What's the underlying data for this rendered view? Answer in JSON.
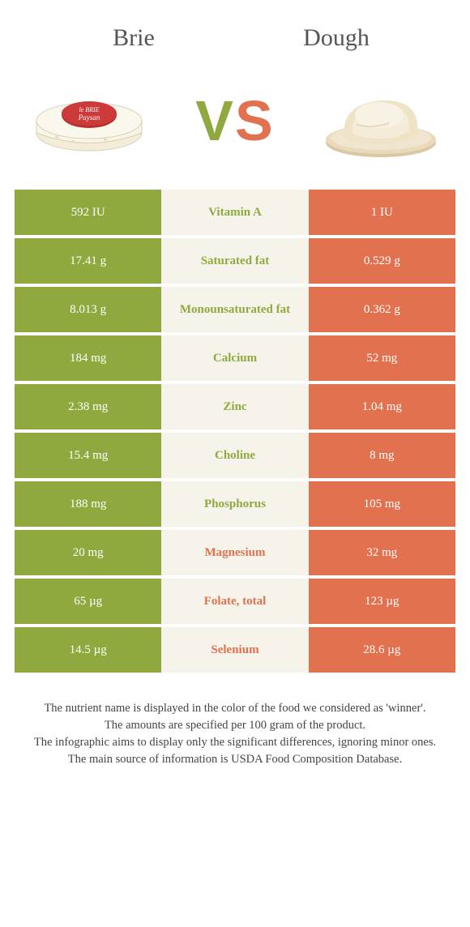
{
  "colors": {
    "left": "#8fa93e",
    "right": "#e2724f",
    "mid_bg": "#f6f3ea",
    "text": "#555"
  },
  "header": {
    "left_title": "Brie",
    "right_title": "Dough",
    "vs_v": "V",
    "vs_s": "S"
  },
  "table": {
    "rows": [
      {
        "left": "592 IU",
        "label": "Vitamin A",
        "right": "1 IU",
        "winner": "left"
      },
      {
        "left": "17.41 g",
        "label": "Saturated fat",
        "right": "0.529 g",
        "winner": "left"
      },
      {
        "left": "8.013 g",
        "label": "Monounsaturated fat",
        "right": "0.362 g",
        "winner": "left"
      },
      {
        "left": "184 mg",
        "label": "Calcium",
        "right": "52 mg",
        "winner": "left"
      },
      {
        "left": "2.38 mg",
        "label": "Zinc",
        "right": "1.04 mg",
        "winner": "left"
      },
      {
        "left": "15.4 mg",
        "label": "Choline",
        "right": "8 mg",
        "winner": "left"
      },
      {
        "left": "188 mg",
        "label": "Phosphorus",
        "right": "105 mg",
        "winner": "left"
      },
      {
        "left": "20 mg",
        "label": "Magnesium",
        "right": "32 mg",
        "winner": "right"
      },
      {
        "left": "65 µg",
        "label": "Folate, total",
        "right": "123 µg",
        "winner": "right"
      },
      {
        "left": "14.5 µg",
        "label": "Selenium",
        "right": "28.6 µg",
        "winner": "right"
      }
    ]
  },
  "footer": {
    "line1": "The nutrient name is displayed in the color of the food we considered as 'winner'.",
    "line2": "The amounts are specified per 100 gram of the product.",
    "line3": "The infographic aims to display only the significant differences, ignoring minor ones.",
    "line4": "The main source of information is USDA Food Composition Database."
  }
}
